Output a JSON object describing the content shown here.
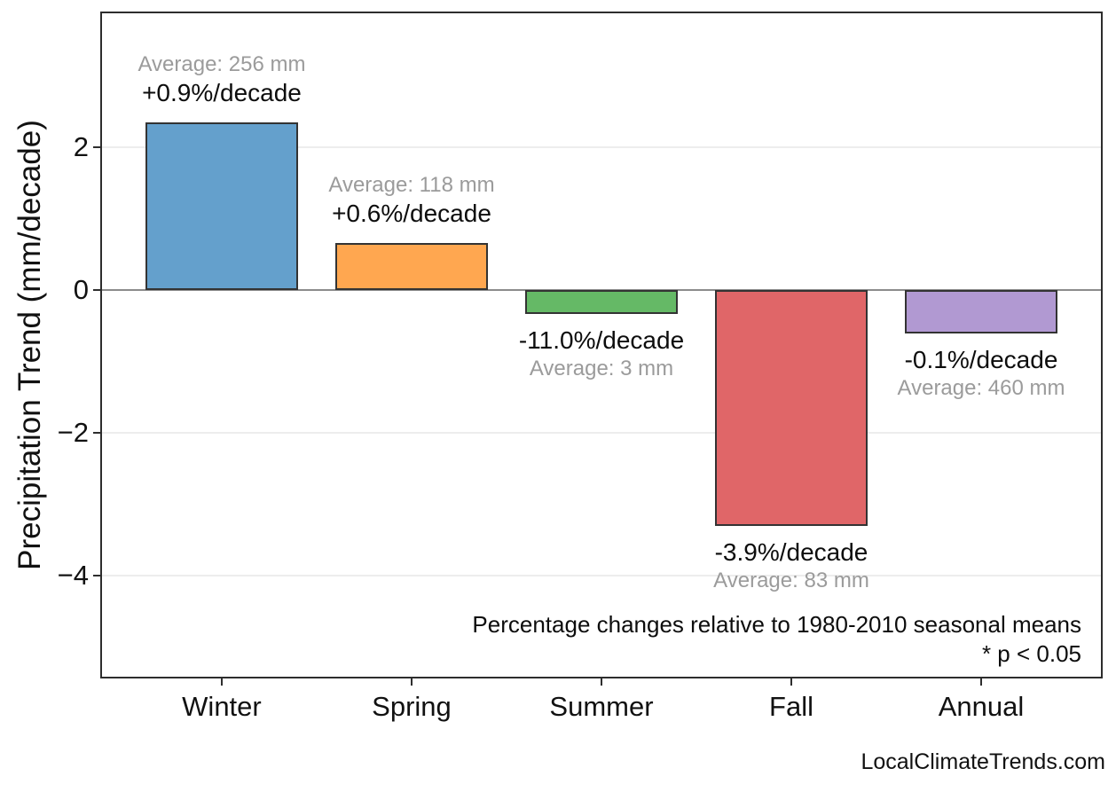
{
  "chart_data": {
    "type": "bar",
    "title": "",
    "categories": [
      "Winter",
      "Spring",
      "Summer",
      "Fall",
      "Annual"
    ],
    "values": [
      2.35,
      0.66,
      -0.33,
      -3.3,
      -0.61
    ],
    "ylabel": "Precipitation Trend (mm/decade)",
    "xlabel": "",
    "ylim": [
      -5.44,
      3.9
    ],
    "yticks": [
      2,
      0,
      -2,
      -4
    ],
    "ytick_labels": [
      "2",
      "0",
      "−2",
      "−4"
    ],
    "grid": "horizontal",
    "zero_line": true,
    "legend": "none",
    "bar_colors": [
      "#64A0CC",
      "#FFA750",
      "#65B966",
      "#E06668",
      "#B199D2"
    ],
    "bar_edge_color": "#333333",
    "annotations": [
      {
        "category": "Winter",
        "average": "Average: 256 mm",
        "trend": "+0.9%/decade"
      },
      {
        "category": "Spring",
        "average": "Average: 118 mm",
        "trend": "+0.6%/decade"
      },
      {
        "category": "Summer",
        "average": "Average: 3 mm",
        "trend": "-11.0%/decade"
      },
      {
        "category": "Fall",
        "average": "Average: 83 mm",
        "trend": "-3.9%/decade"
      },
      {
        "category": "Annual",
        "average": "Average: 460 mm",
        "trend": "-0.1%/decade"
      }
    ],
    "notes": [
      "Percentage changes relative to 1980-2010 seasonal means",
      "* p < 0.05"
    ],
    "watermark": "LocalClimateTrends.com"
  },
  "colors": {
    "grid": "#ededed",
    "zero_line": "#8c8c8c",
    "frame": "#2d2d2d",
    "annotation_gray": "#9b9b9b",
    "annotation_black": "#0d0d0d"
  }
}
